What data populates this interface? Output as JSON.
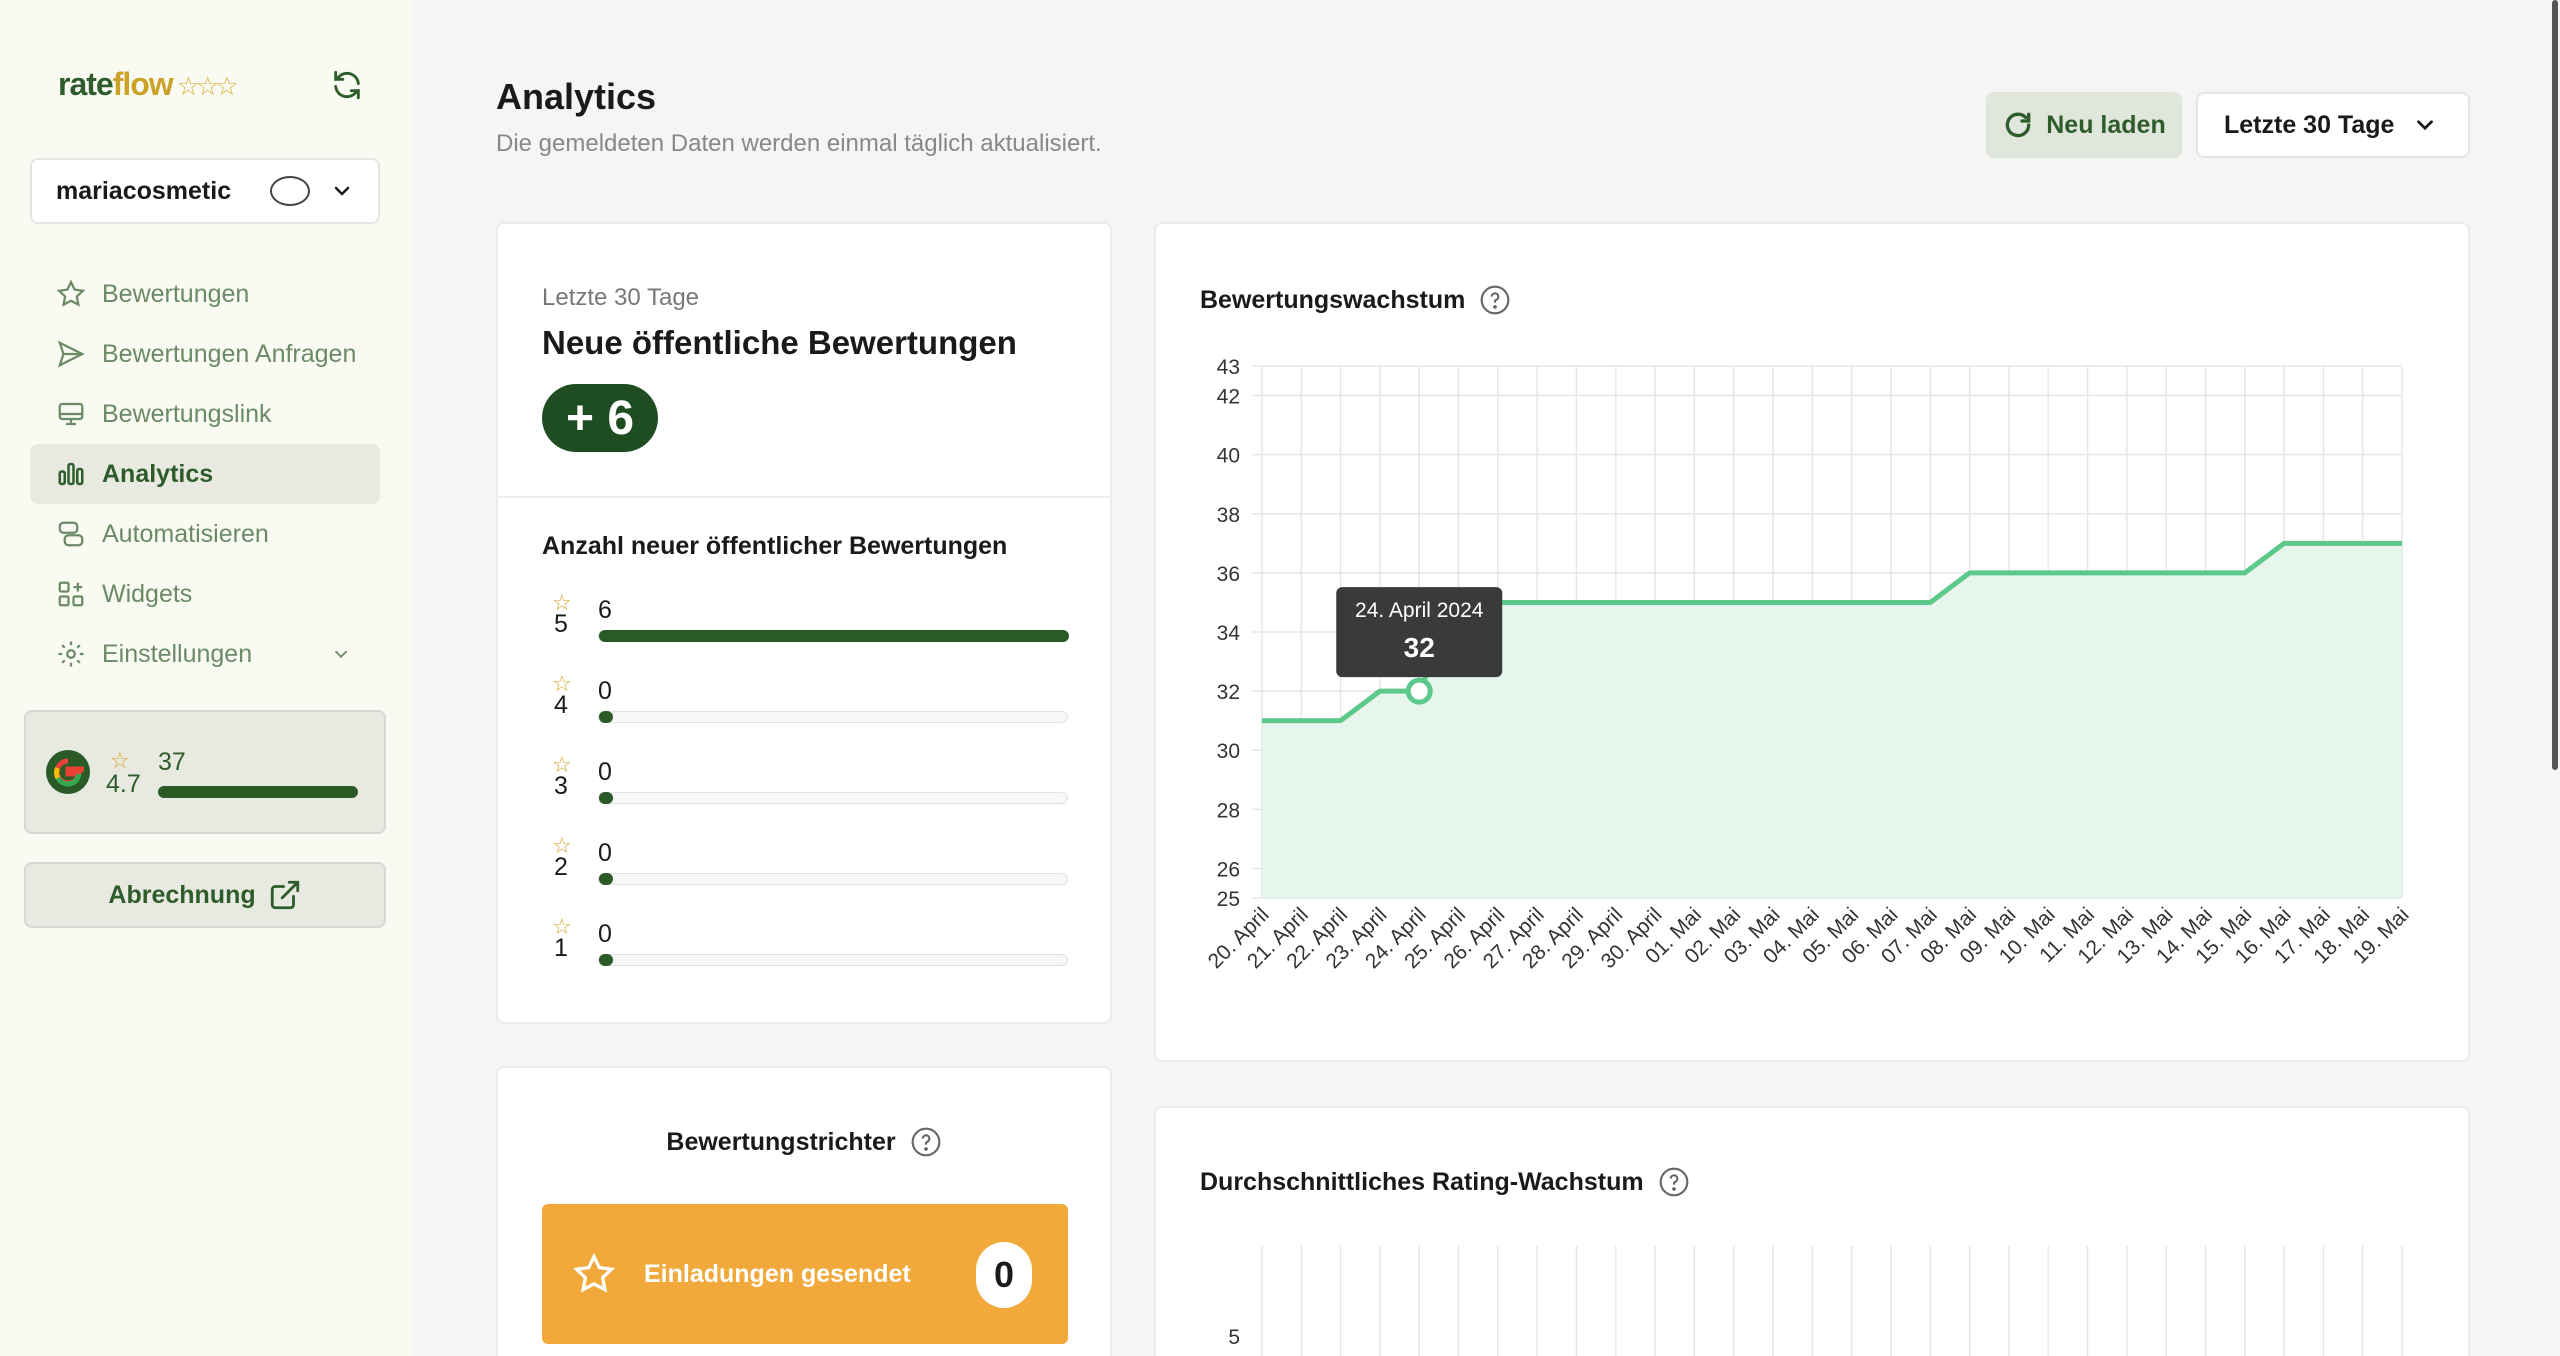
{
  "sidebar": {
    "logo_rate": "rate",
    "logo_flow": "flow",
    "logo_stars": "☆☆☆",
    "account_name": "mariacosmetic",
    "items": [
      {
        "label": "Bewertungen",
        "icon": "star-icon"
      },
      {
        "label": "Bewertungen Anfragen",
        "icon": "send-icon"
      },
      {
        "label": "Bewertungslink",
        "icon": "monitor-icon"
      },
      {
        "label": "Analytics",
        "icon": "bar-chart-icon",
        "active": true
      },
      {
        "label": "Automatisieren",
        "icon": "automation-icon"
      },
      {
        "label": "Widgets",
        "icon": "widgets-icon"
      },
      {
        "label": "Einstellungen",
        "icon": "gear-icon"
      }
    ],
    "rating": {
      "average": "4.7",
      "count": "37",
      "star": "☆"
    },
    "billing_label": "Abrechnung"
  },
  "header": {
    "title": "Analytics",
    "subtitle": "Die gemeldeten Daten werden einmal täglich aktualisiert.",
    "reload_label": "Neu laden",
    "range_label": "Letzte 30 Tage"
  },
  "summary": {
    "period": "Letzte 30 Tage",
    "heading": "Neue öffentliche Bewertungen",
    "badge": "+ 6",
    "breakdown_title": "Anzahl neuer öffentlicher Bewertungen",
    "rows": [
      {
        "stars": "5",
        "count": "6",
        "fraction": 1.0
      },
      {
        "stars": "4",
        "count": "0",
        "fraction": 0
      },
      {
        "stars": "3",
        "count": "0",
        "fraction": 0
      },
      {
        "stars": "2",
        "count": "0",
        "fraction": 0
      },
      {
        "stars": "1",
        "count": "0",
        "fraction": 0
      }
    ]
  },
  "growth": {
    "title": "Bewertungswachstum",
    "tooltip_date": "24. April 2024",
    "tooltip_value": "32",
    "accent": "#5cc98a"
  },
  "chart_data": {
    "type": "area",
    "title": "Bewertungswachstum",
    "x": [
      "20. April",
      "21. April",
      "22. April",
      "23. April",
      "24. April",
      "25. April",
      "26. April",
      "27. April",
      "28. April",
      "29. April",
      "30. April",
      "01. Mai",
      "02. Mai",
      "03. Mai",
      "04. Mai",
      "05. Mai",
      "06. Mai",
      "07. Mai",
      "08. Mai",
      "09. Mai",
      "10. Mai",
      "11. Mai",
      "12. Mai",
      "13. Mai",
      "14. Mai",
      "15. Mai",
      "16. Mai",
      "17. Mai",
      "18. Mai",
      "19. Mai"
    ],
    "y": [
      31,
      31,
      31,
      32,
      32,
      35,
      35,
      35,
      35,
      35,
      35,
      35,
      35,
      35,
      35,
      35,
      35,
      35,
      36,
      36,
      36,
      36,
      36,
      36,
      36,
      36,
      37,
      37,
      37,
      37
    ],
    "yticks": [
      25,
      26,
      28,
      30,
      32,
      34,
      36,
      38,
      40,
      42,
      43
    ],
    "ylim": [
      25,
      43
    ],
    "grid": true
  },
  "funnel": {
    "title": "Bewertungstrichter",
    "step_label": "Einladungen gesendet",
    "step_value": "0"
  },
  "avg_growth": {
    "title": "Durchschnittliches Rating-Wachstum",
    "first_tick": "5"
  }
}
